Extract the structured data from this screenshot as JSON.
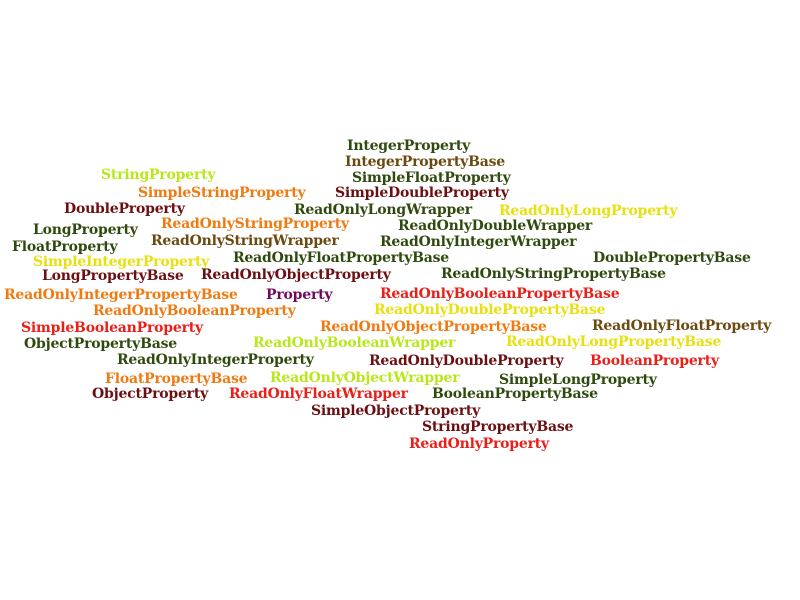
{
  "colors": {
    "background": "#ffffff",
    "dark-maroon": "#6b0f12",
    "dark-green": "#2f4a0e",
    "olive-brown": "#6b4a10",
    "red": "#e8201a",
    "orange": "#f07a12",
    "yellow": "#e8e010",
    "lime": "#b8e81a",
    "purple": "#700a5c"
  },
  "words": [
    {
      "text": "IntegerProperty",
      "color": "#2f4a0e"
    },
    {
      "text": "IntegerPropertyBase",
      "color": "#6b4a10"
    },
    {
      "text": "StringProperty",
      "color": "#b8e81a"
    },
    {
      "text": "SimpleFloatProperty",
      "color": "#2f4a0e"
    },
    {
      "text": "SimpleStringProperty",
      "color": "#f07a12"
    },
    {
      "text": "SimpleDoubleProperty",
      "color": "#6b0f12"
    },
    {
      "text": "DoubleProperty",
      "color": "#6b0f12"
    },
    {
      "text": "ReadOnlyLongWrapper",
      "color": "#2f4a0e"
    },
    {
      "text": "ReadOnlyLongProperty",
      "color": "#e8e010"
    },
    {
      "text": "ReadOnlyStringProperty",
      "color": "#f07a12"
    },
    {
      "text": "LongProperty",
      "color": "#2f4a0e"
    },
    {
      "text": "ReadOnlyDoubleWrapper",
      "color": "#2f4a0e"
    },
    {
      "text": "ReadOnlyStringWrapper",
      "color": "#6b4a10"
    },
    {
      "text": "ReadOnlyIntegerWrapper",
      "color": "#2f4a0e"
    },
    {
      "text": "FloatProperty",
      "color": "#2f4a0e"
    },
    {
      "text": "SimpleIntegerProperty",
      "color": "#e8e010"
    },
    {
      "text": "ReadOnlyFloatPropertyBase",
      "color": "#2f4a0e"
    },
    {
      "text": "DoublePropertyBase",
      "color": "#2f4a0e"
    },
    {
      "text": "LongPropertyBase",
      "color": "#6b0f12"
    },
    {
      "text": "ReadOnlyObjectProperty",
      "color": "#6b0f12"
    },
    {
      "text": "ReadOnlyStringPropertyBase",
      "color": "#2f4a0e"
    },
    {
      "text": "ReadOnlyIntegerPropertyBase",
      "color": "#f07a12"
    },
    {
      "text": "Property",
      "color": "#700a5c"
    },
    {
      "text": "ReadOnlyBooleanPropertyBase",
      "color": "#e8201a"
    },
    {
      "text": "ReadOnlyBooleanProperty",
      "color": "#f07a12"
    },
    {
      "text": "ReadOnlyDoublePropertyBase",
      "color": "#e8e010"
    },
    {
      "text": "SimpleBooleanProperty",
      "color": "#e8201a"
    },
    {
      "text": "ReadOnlyObjectPropertyBase",
      "color": "#f07a12"
    },
    {
      "text": "ReadOnlyFloatProperty",
      "color": "#6b4a10"
    },
    {
      "text": "ObjectPropertyBase",
      "color": "#2f4a0e"
    },
    {
      "text": "ReadOnlyBooleanWrapper",
      "color": "#b8e81a"
    },
    {
      "text": "ReadOnlyLongPropertyBase",
      "color": "#e8e010"
    },
    {
      "text": "ReadOnlyIntegerProperty",
      "color": "#2f4a0e"
    },
    {
      "text": "ReadOnlyDoubleProperty",
      "color": "#6b0f12"
    },
    {
      "text": "BooleanProperty",
      "color": "#e8201a"
    },
    {
      "text": "FloatPropertyBase",
      "color": "#f07a12"
    },
    {
      "text": "ReadOnlyObjectWrapper",
      "color": "#b8e81a"
    },
    {
      "text": "SimpleLongProperty",
      "color": "#2f4a0e"
    },
    {
      "text": "ObjectProperty",
      "color": "#6b0f12"
    },
    {
      "text": "ReadOnlyFloatWrapper",
      "color": "#e8201a"
    },
    {
      "text": "BooleanPropertyBase",
      "color": "#2f4a0e"
    },
    {
      "text": "SimpleObjectProperty",
      "color": "#6b0f12"
    },
    {
      "text": "StringPropertyBase",
      "color": "#6b0f12"
    },
    {
      "text": "ReadOnlyProperty",
      "color": "#e8201a"
    }
  ]
}
